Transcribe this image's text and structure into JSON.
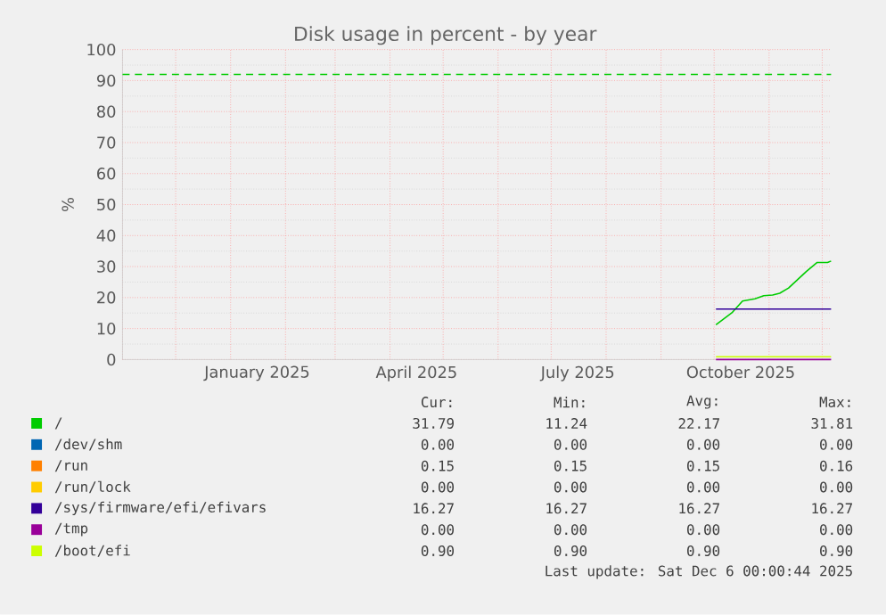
{
  "chart_data": {
    "type": "line",
    "title": "Disk usage in percent - by year",
    "ylabel": "%",
    "xlim": [
      "2024-11-01",
      "2025-12-06"
    ],
    "ylim": [
      0,
      100
    ],
    "yticks": [
      0,
      10,
      20,
      30,
      40,
      50,
      60,
      70,
      80,
      90,
      100
    ],
    "xticks": [
      {
        "value": "2024-11-01",
        "label": null
      },
      {
        "value": "2024-12-01",
        "label": null
      },
      {
        "value": "2025-01-01",
        "label": null
      },
      {
        "value": "2025-01-16",
        "label": "January 2025"
      },
      {
        "value": "2025-02-01",
        "label": null
      },
      {
        "value": "2025-03-01",
        "label": null
      },
      {
        "value": "2025-04-01",
        "label": null
      },
      {
        "value": "2025-04-16",
        "label": "April 2025"
      },
      {
        "value": "2025-05-01",
        "label": null
      },
      {
        "value": "2025-06-01",
        "label": null
      },
      {
        "value": "2025-07-01",
        "label": null
      },
      {
        "value": "2025-07-16",
        "label": "July 2025"
      },
      {
        "value": "2025-08-01",
        "label": null
      },
      {
        "value": "2025-09-01",
        "label": null
      },
      {
        "value": "2025-10-01",
        "label": null
      },
      {
        "value": "2025-10-16",
        "label": "October 2025"
      },
      {
        "value": "2025-11-01",
        "label": null
      },
      {
        "value": "2025-12-01",
        "label": null
      }
    ],
    "grid": true,
    "legend": "bottom",
    "marker": "none",
    "line_style": "solid",
    "ref_lines": [
      {
        "axis": "y",
        "value": 92,
        "color": "#00cc00",
        "line_style": "dashed"
      }
    ],
    "series": [
      {
        "name": "/",
        "color": "#00cc00",
        "x": [
          "2025-10-02",
          "2025-10-11",
          "2025-10-17",
          "2025-10-24",
          "2025-10-29",
          "2025-11-03",
          "2025-11-07",
          "2025-11-12",
          "2025-11-22",
          "2025-11-28",
          "2025-12-04",
          "2025-12-06"
        ],
        "values": [
          11.24,
          15.1,
          18.9,
          19.6,
          20.6,
          20.8,
          21.4,
          23.1,
          28.4,
          31.3,
          31.3,
          31.79
        ]
      },
      {
        "name": "/dev/shm",
        "color": "#0066b3"
      },
      {
        "name": "/run",
        "color": "#ff8000"
      },
      {
        "name": "/run/lock",
        "color": "#ffcc00"
      },
      {
        "name": "/sys/firmware/efi/efivars",
        "color": "#330099",
        "x": [
          "2025-10-02",
          "2025-12-06"
        ],
        "values": [
          16.27,
          16.27
        ]
      },
      {
        "name": "/tmp",
        "color": "#990099",
        "x": [
          "2025-10-02",
          "2025-12-06"
        ],
        "values": [
          0,
          0
        ]
      },
      {
        "name": "/boot/efi",
        "color": "#ccff00",
        "x": [
          "2025-10-02",
          "2025-12-06"
        ],
        "values": [
          0.9,
          0.9
        ]
      }
    ],
    "annotations": [
      "Cur:",
      "Min:",
      "Avg:",
      "Max:",
      "31.79",
      "11.24",
      "22.17",
      "31.81",
      "0.00",
      "0.00",
      "0.00",
      "0.00",
      "0.15",
      "0.15",
      "0.15",
      "0.16",
      "0.00",
      "0.00",
      "0.00",
      "0.00",
      "16.27",
      "16.27",
      "16.27",
      "16.27",
      "0.00",
      "0.00",
      "0.00",
      "0.00",
      "0.90",
      "0.90",
      "0.90",
      "0.90",
      "Last update: Sat Dec  6 00:00:44 2025"
    ]
  }
}
